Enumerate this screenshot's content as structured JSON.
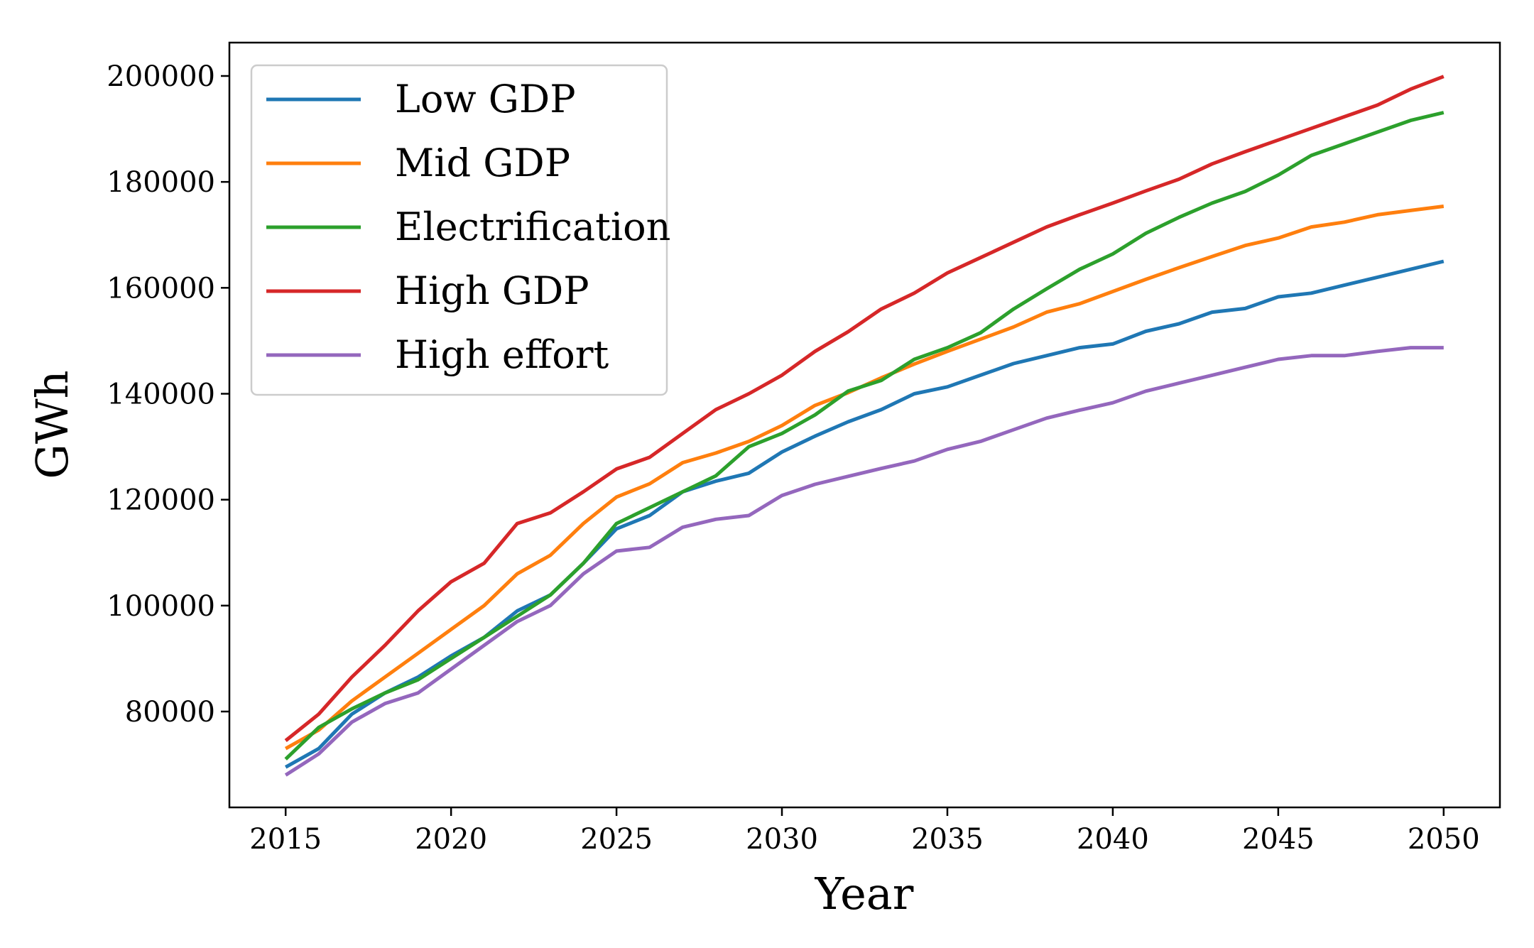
{
  "chart_data": {
    "type": "line",
    "title": "",
    "xlabel": "Year",
    "ylabel": "GWh",
    "xlim": [
      2013.3,
      2051.7
    ],
    "ylim": [
      61900,
      206300
    ],
    "x_ticks": [
      2015,
      2020,
      2025,
      2030,
      2035,
      2040,
      2045,
      2050
    ],
    "y_ticks": [
      80000,
      100000,
      120000,
      140000,
      160000,
      180000,
      200000
    ],
    "x_tick_labels": [
      "2015",
      "2020",
      "2025",
      "2030",
      "2035",
      "2040",
      "2045",
      "2050"
    ],
    "y_tick_labels": [
      "80000",
      "100000",
      "120000",
      "140000",
      "160000",
      "180000",
      "200000"
    ],
    "grid": false,
    "legend_position": "top-left",
    "x": [
      2015,
      2016,
      2017,
      2018,
      2019,
      2020,
      2021,
      2022,
      2023,
      2024,
      2025,
      2026,
      2027,
      2028,
      2029,
      2030,
      2031,
      2032,
      2033,
      2034,
      2035,
      2036,
      2037,
      2038,
      2039,
      2040,
      2041,
      2042,
      2043,
      2044,
      2045,
      2046,
      2047,
      2048,
      2049,
      2050
    ],
    "series": [
      {
        "name": "Low GDP",
        "color": "#1f77b4",
        "values": [
          69500,
          73000,
          79500,
          83500,
          86500,
          90500,
          94000,
          99000,
          102000,
          108000,
          114500,
          117000,
          121500,
          123500,
          125000,
          129000,
          132000,
          134700,
          137000,
          140000,
          141300,
          143500,
          145700,
          147200,
          148700,
          149400,
          151800,
          153200,
          155400,
          156100,
          158300,
          159000,
          160500,
          162000,
          163500,
          165000
        ]
      },
      {
        "name": "Mid GDP",
        "color": "#ff7f0e",
        "values": [
          73000,
          76500,
          82000,
          86500,
          91000,
          95500,
          100000,
          106000,
          109500,
          115500,
          120500,
          123000,
          127000,
          128800,
          131000,
          134000,
          137800,
          140200,
          143000,
          145600,
          148000,
          150300,
          152600,
          155400,
          157000,
          159300,
          161600,
          163800,
          165900,
          168000,
          169400,
          171500,
          172400,
          173800,
          174600,
          175400
        ]
      },
      {
        "name": "Electrification",
        "color": "#2ca02c",
        "values": [
          71000,
          77000,
          80500,
          83500,
          86000,
          90000,
          94000,
          98000,
          102000,
          108000,
          115500,
          118500,
          121500,
          124500,
          130000,
          132500,
          136000,
          140500,
          142500,
          146500,
          148700,
          151500,
          156000,
          159800,
          163500,
          166400,
          170300,
          173300,
          176000,
          178200,
          181300,
          185000,
          187200,
          189400,
          191600,
          193100
        ]
      },
      {
        "name": "High GDP",
        "color": "#d62728",
        "values": [
          74500,
          79500,
          86500,
          92500,
          99000,
          104500,
          108000,
          115500,
          117500,
          121500,
          125800,
          128000,
          132500,
          137000,
          140000,
          143500,
          148000,
          151700,
          156000,
          159000,
          162800,
          165700,
          168600,
          171500,
          173800,
          176000,
          178300,
          180500,
          183400,
          185700,
          187900,
          190100,
          192300,
          194500,
          197500,
          199900
        ]
      },
      {
        "name": "High effort",
        "color": "#9467bd",
        "values": [
          68000,
          72000,
          78000,
          81500,
          83500,
          88000,
          92500,
          97000,
          100000,
          106000,
          110300,
          111000,
          114800,
          116300,
          117000,
          120800,
          122900,
          124400,
          125900,
          127300,
          129500,
          131000,
          133200,
          135400,
          136900,
          138300,
          140500,
          142000,
          143500,
          145000,
          146500,
          147200,
          147200,
          148000,
          148700,
          148700
        ]
      }
    ]
  }
}
